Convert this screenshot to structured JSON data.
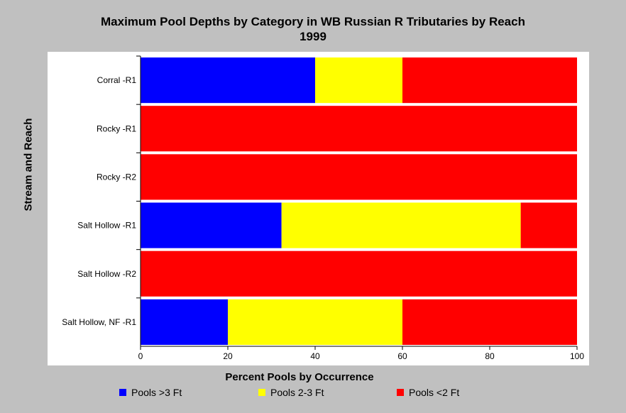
{
  "chart_data": {
    "type": "bar",
    "orientation": "horizontal",
    "stacked": true,
    "title": [
      "Maximum Pool Depths by Category in WB Russian R Tributaries by Reach",
      "1999"
    ],
    "xlabel": "Percent Pools by Occurrence",
    "ylabel": "Stream and Reach",
    "categories": [
      "Corral -R1",
      "Rocky -R1",
      "Rocky -R2",
      "Salt Hollow -R1",
      "Salt Hollow -R2",
      "Salt Hollow, NF -R1"
    ],
    "xlim": [
      0,
      100
    ],
    "xticks": [
      "0",
      "20",
      "40",
      "60",
      "80",
      "100"
    ],
    "grid": false,
    "legend_position": "bottom",
    "series": [
      {
        "name": "Pools >3 Ft",
        "color": "#0000ff",
        "values": [
          40,
          0,
          0,
          32.3,
          0,
          20
        ]
      },
      {
        "name": "Pools 2-3 Ft",
        "color": "#ffff00",
        "values": [
          20,
          0,
          0,
          54.8,
          0,
          40
        ]
      },
      {
        "name": "Pools <2 Ft",
        "color": "#ff0000",
        "values": [
          40,
          100,
          100,
          12.9,
          100,
          40
        ]
      }
    ]
  }
}
